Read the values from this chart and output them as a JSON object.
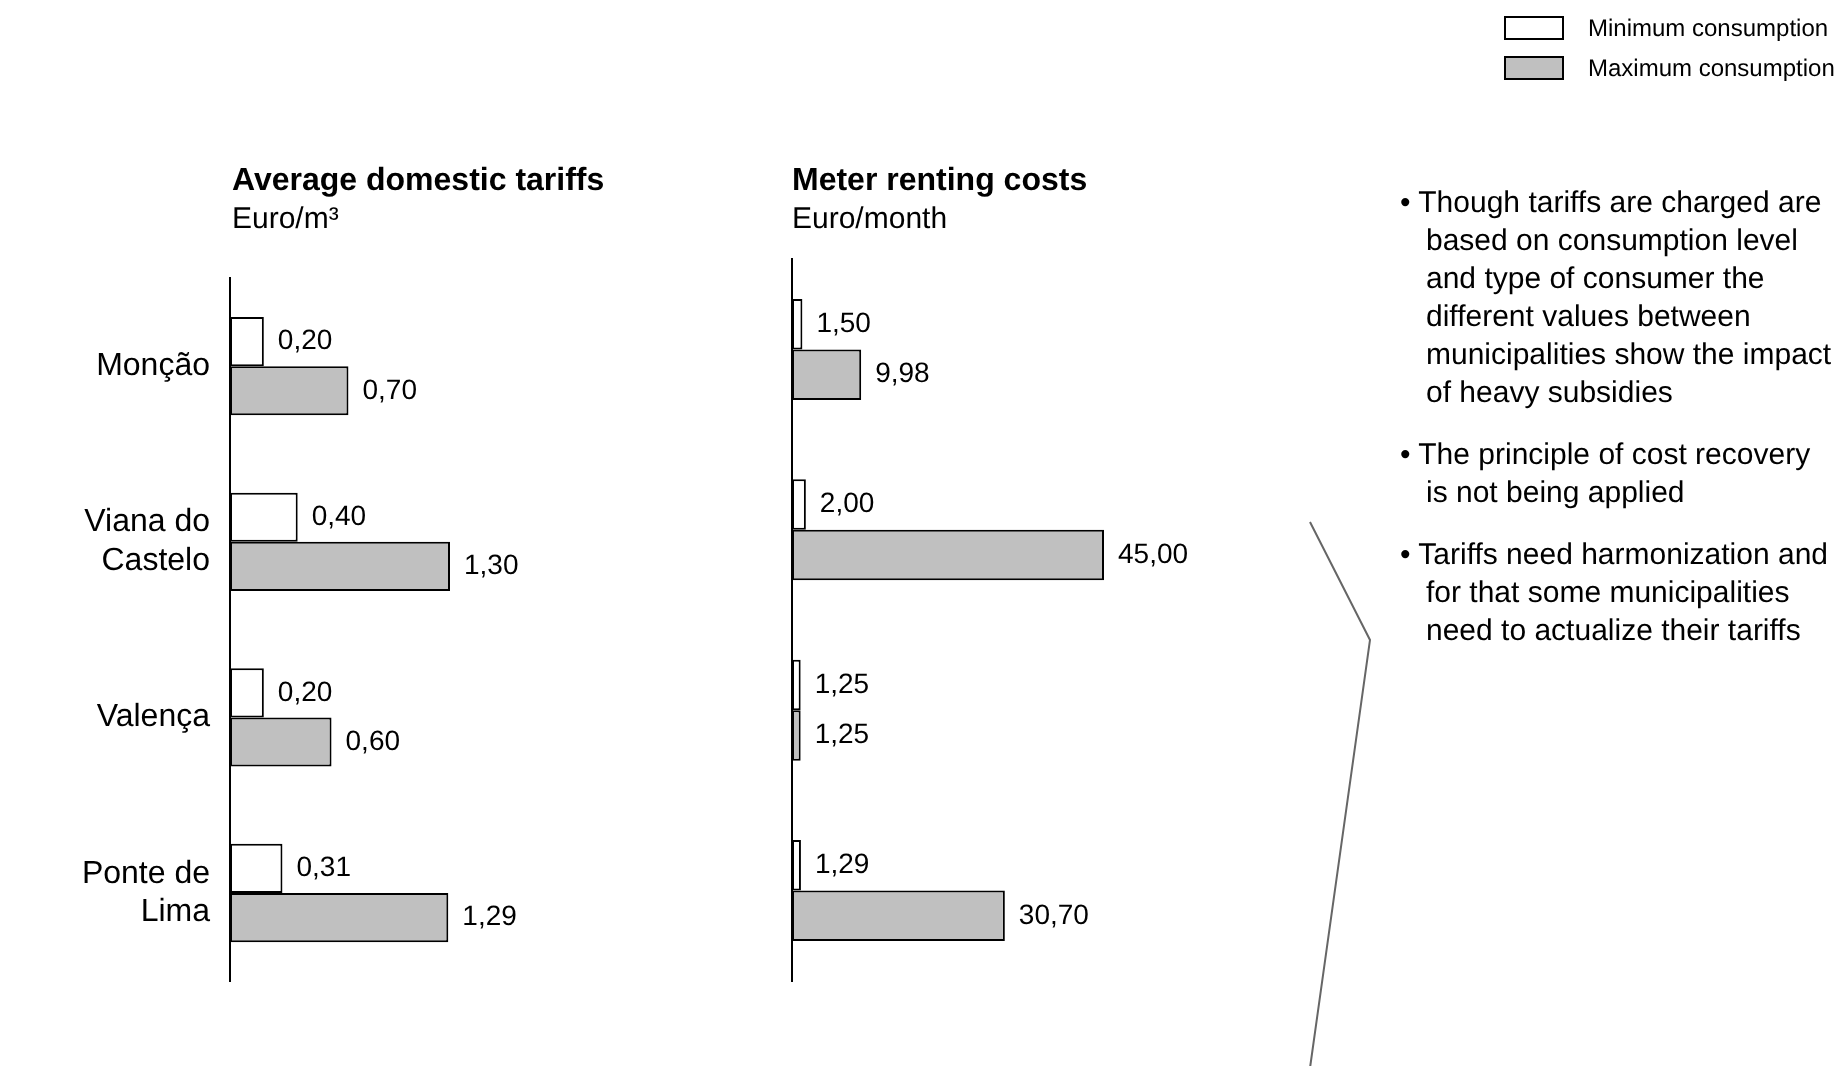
{
  "chart_data": [
    {
      "type": "bar",
      "orientation": "horizontal",
      "title": "Average domestic tariffs",
      "subtitle": "Euro/m³",
      "categories": [
        "Monção",
        "Viana do Castelo",
        "Valença",
        "Ponte de Lima"
      ],
      "series": [
        {
          "color": "#ffffff",
          "values": [
            0.2,
            0.4,
            0.2,
            0.31
          ],
          "value_labels": [
            "0,20",
            "0,40",
            "0,20",
            "0,31"
          ]
        },
        {
          "color": "#c0c0c0",
          "values": [
            0.7,
            1.3,
            0.6,
            1.29
          ],
          "value_labels": [
            "0,70",
            "1,30",
            "0,60",
            "1,29"
          ]
        }
      ],
      "legend": false
    },
    {
      "type": "bar",
      "orientation": "horizontal",
      "title": "Meter renting costs",
      "subtitle": "Euro/month",
      "categories": [
        null,
        null,
        null,
        null
      ],
      "series": [
        {
          "name": "Minimum consumption",
          "color": "#ffffff",
          "values": [
            1.5,
            2.0,
            1.25,
            1.29
          ],
          "value_labels": [
            "1,50",
            "2,00",
            "1,25",
            "1,29"
          ]
        },
        {
          "name": "Maximum consumption",
          "color": "#c0c0c0",
          "values": [
            9.98,
            45.0,
            1.25,
            30.7
          ],
          "value_labels": [
            "9,98",
            "45,00",
            "1,25",
            "30,70"
          ]
        }
      ],
      "legend": "top right"
    },
    {
      "type": "other",
      "annotations": [
        "• Though tariffs are charged are based on consumption level and type of consumer the different values between municipalities show the impact of heavy subsidies",
        "• The principle of cost recovery is not being applied",
        "• Tariffs need harmonization and for that some municipalities need to actualize their tariffs"
      ]
    }
  ]
}
